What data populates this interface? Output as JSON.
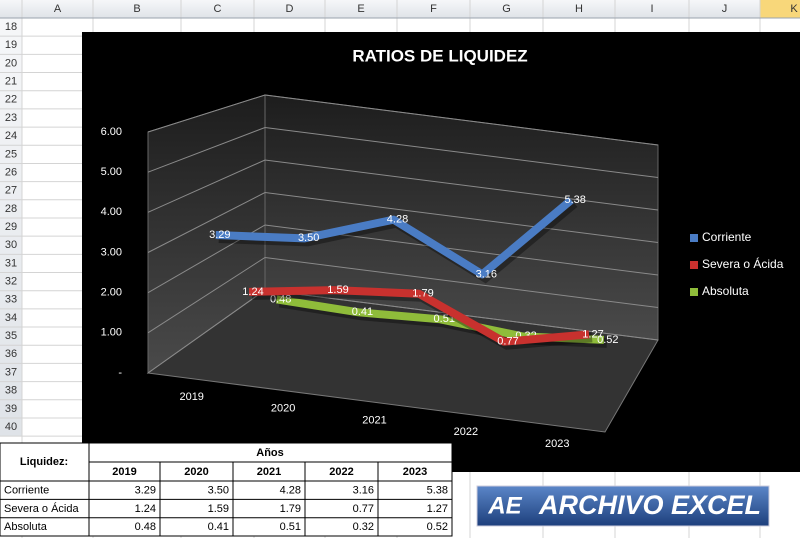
{
  "spreadsheet": {
    "columns": [
      "A",
      "B",
      "C",
      "D",
      "E",
      "F",
      "G",
      "H",
      "I",
      "J",
      "K"
    ],
    "rows": [
      18,
      19,
      20,
      21,
      22,
      23,
      24,
      25,
      26,
      27,
      28,
      29,
      30,
      31,
      32,
      33,
      34,
      35,
      36,
      37,
      38,
      39,
      40
    ]
  },
  "chart_data": {
    "type": "line",
    "title": "RATIOS DE LIQUIDEZ",
    "categories": [
      "2019",
      "2020",
      "2021",
      "2022",
      "2023"
    ],
    "series": [
      {
        "name": "Corriente",
        "color": "#4a7cc4",
        "values": [
          3.29,
          3.5,
          4.28,
          3.16,
          5.38
        ],
        "value_labels": [
          "3.29",
          "3.50",
          "4.28",
          "3.16",
          "5.38"
        ]
      },
      {
        "name": "Severa o Ácida",
        "color": "#c8312e",
        "values": [
          1.24,
          1.59,
          1.79,
          0.77,
          1.27
        ],
        "value_labels": [
          "1.24",
          "1.59",
          "1.79",
          "0.77",
          "1.27"
        ]
      },
      {
        "name": "Absoluta",
        "color": "#8fbc3a",
        "values": [
          0.48,
          0.41,
          0.51,
          0.32,
          0.52
        ],
        "value_labels": [
          "0.48",
          "0.41",
          "0.51",
          "0.32",
          "0.52"
        ]
      }
    ],
    "ylim": [
      0,
      6
    ],
    "yticks": [
      {
        "value": 0,
        "label": "-"
      },
      {
        "value": 1,
        "label": "1.00"
      },
      {
        "value": 2,
        "label": "2.00"
      },
      {
        "value": 3,
        "label": "3.00"
      },
      {
        "value": 4,
        "label": "4.00"
      },
      {
        "value": 5,
        "label": "5.00"
      },
      {
        "value": 6,
        "label": "6.00"
      }
    ],
    "grid": true,
    "legend": "right"
  },
  "table": {
    "title": "Liquidez:",
    "header": "Años"
  },
  "logo": {
    "mark": "AE",
    "text": "ARCHIVO EXCEL"
  }
}
